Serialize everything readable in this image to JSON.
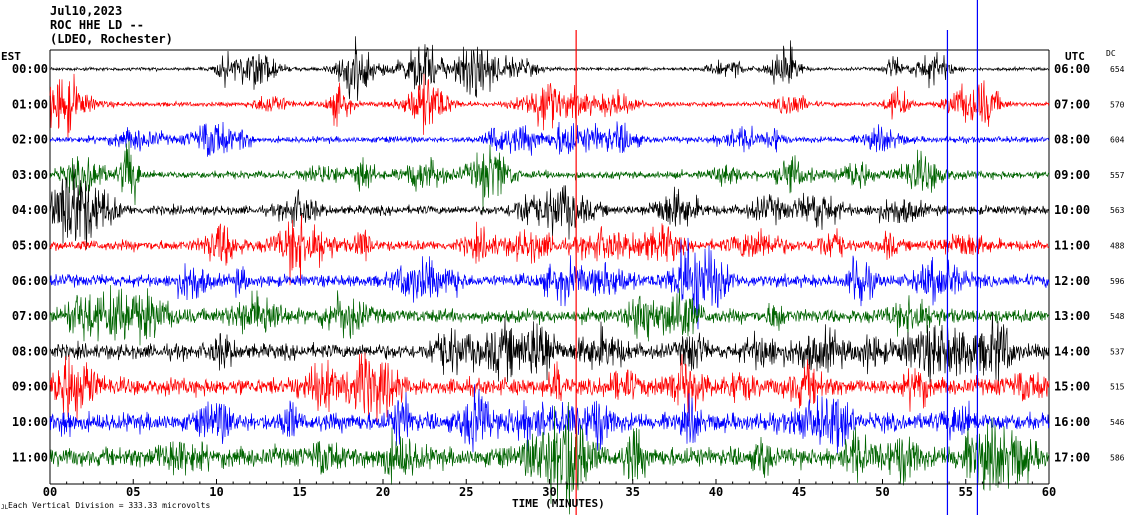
{
  "header": {
    "date": "Jul10,2023",
    "station": "ROC HHE LD --",
    "location": "(LDEO, Rochester)"
  },
  "timezones": {
    "left": "EST",
    "right": "UTC",
    "dc": "DC"
  },
  "footer": {
    "x_axis_title": "TIME (MINUTES)",
    "scale_prefix": "JL",
    "scale_note": "Each Vertical Division =  333.33 microvolts"
  },
  "colors": {
    "trace_cycle": [
      "#000000",
      "#ff0000",
      "#0000ff",
      "#006400"
    ],
    "event_marker": "#0000ff",
    "event_marker_red": "#ff0000",
    "axis": "#000000"
  },
  "chart_data": {
    "type": "line",
    "title": "",
    "xlabel": "TIME (MINUTES)",
    "ylabel": "",
    "xlim": [
      0,
      60
    ],
    "x_ticks": [
      "00",
      "05",
      "10",
      "15",
      "20",
      "25",
      "30",
      "35",
      "40",
      "45",
      "50",
      "55",
      "60"
    ],
    "left_labels": [
      "00:00",
      "01:00",
      "02:00",
      "03:00",
      "04:00",
      "05:00",
      "06:00",
      "07:00",
      "08:00",
      "09:00",
      "10:00",
      "11:00"
    ],
    "right_labels": [
      "06:00",
      "07:00",
      "08:00",
      "09:00",
      "10:00",
      "11:00",
      "12:00",
      "13:00",
      "14:00",
      "15:00",
      "16:00",
      "17:00"
    ],
    "dc_offsets": [
      "654",
      "570",
      "604",
      "557",
      "563",
      "488",
      "596",
      "548",
      "537",
      "515",
      "546",
      "586"
    ],
    "grid": false,
    "legend": "none",
    "event_lines": [
      {
        "minute": 55.7,
        "color_key": "event_marker"
      },
      {
        "minute": 53.9,
        "color_key": "event_marker"
      },
      {
        "minute": 31.6,
        "color_key": "event_marker_red"
      }
    ]
  }
}
